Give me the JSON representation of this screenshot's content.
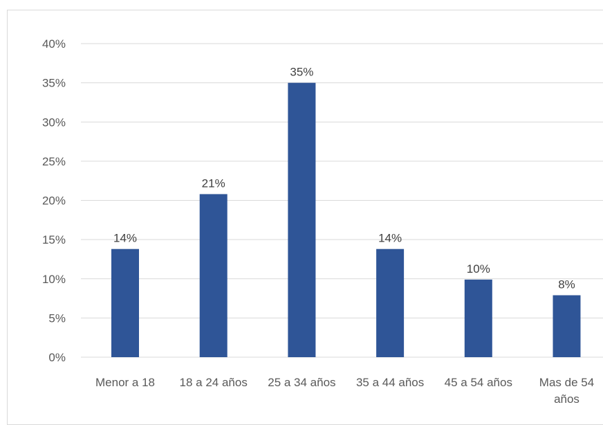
{
  "chart_data": {
    "type": "bar",
    "title": "",
    "xlabel": "",
    "ylabel": "",
    "categories": [
      [
        "Menor a 18"
      ],
      [
        "18 a 24 años"
      ],
      [
        "25 a 34 años"
      ],
      [
        "35 a 44 años"
      ],
      [
        "45 a 54 años"
      ],
      [
        "Mas de 54",
        "años"
      ]
    ],
    "values": [
      13.8,
      20.8,
      35.0,
      13.8,
      9.9,
      7.9
    ],
    "data_labels": [
      "14%",
      "21%",
      "35%",
      "14%",
      "10%",
      "8%"
    ],
    "y_ticks": [
      "0%",
      "5%",
      "10%",
      "15%",
      "20%",
      "25%",
      "30%",
      "35%",
      "40%"
    ],
    "ylim": [
      0,
      40
    ],
    "grid": true,
    "legend": "none",
    "bar_color": "#2f5597",
    "grid_color": "#d9d9d9"
  }
}
